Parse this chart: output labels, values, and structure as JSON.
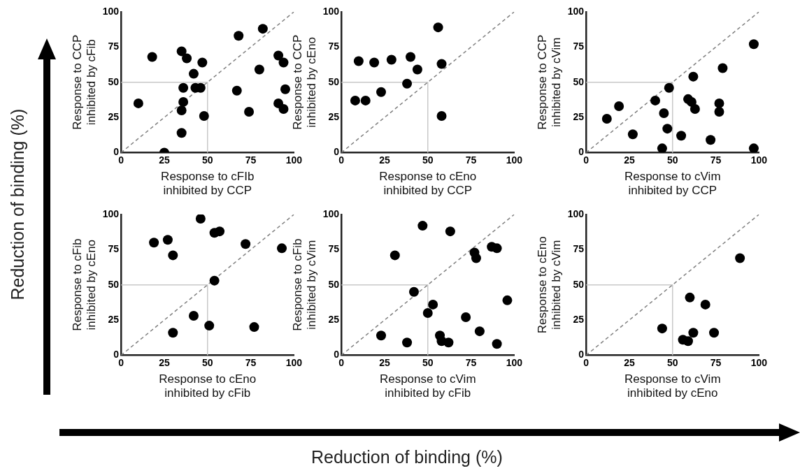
{
  "chart_data": [
    {
      "type": "scatter",
      "xlabel": "Response to cFIb inhibited by CCP",
      "ylabel": "Response to CCP inhibited by cFib",
      "xlim": [
        0,
        100
      ],
      "ylim": [
        0,
        100
      ],
      "xticks": [
        0,
        25,
        50,
        75,
        100
      ],
      "yticks": [
        0,
        25,
        50,
        75,
        100
      ],
      "series": [
        {
          "type": "scatter",
          "marker": "circle",
          "color": "#000000",
          "x": [
            18,
            35,
            38,
            47,
            42,
            36,
            43,
            46,
            10,
            36,
            35,
            48,
            35,
            25,
            68,
            82,
            67,
            74,
            80,
            91,
            94,
            95,
            91,
            94
          ],
          "values": [
            68,
            72,
            67,
            64,
            56,
            46,
            46,
            46,
            35,
            36,
            30,
            26,
            14,
            0,
            83,
            88,
            44,
            29,
            59,
            69,
            64,
            45,
            35,
            31
          ]
        },
        {
          "type": "line",
          "marker": "none",
          "line_style": "dashed",
          "color": "#808080",
          "x": [
            0,
            100
          ],
          "values": [
            0,
            100
          ]
        },
        {
          "type": "line",
          "marker": "none",
          "line_style": "solid",
          "color": "#c8c8c8",
          "x": [
            0,
            50,
            50
          ],
          "values": [
            50,
            50,
            0
          ]
        }
      ]
    },
    {
      "type": "scatter",
      "xlabel": "Response to cEno inhibited by CCP",
      "ylabel": "Response to CCP inhibited by cEno",
      "xlim": [
        0,
        100
      ],
      "ylim": [
        0,
        100
      ],
      "xticks": [
        0,
        25,
        50,
        75,
        100
      ],
      "yticks": [
        0,
        25,
        50,
        75,
        100
      ],
      "series": [
        {
          "type": "scatter",
          "marker": "circle",
          "color": "#000000",
          "x": [
            8,
            14,
            10,
            19,
            23,
            29,
            38,
            40,
            44,
            56,
            58,
            58
          ],
          "values": [
            37,
            37,
            65,
            64,
            43,
            66,
            49,
            68,
            59,
            89,
            63,
            26
          ]
        },
        {
          "type": "line",
          "marker": "none",
          "line_style": "dashed",
          "color": "#808080",
          "x": [
            0,
            100
          ],
          "values": [
            0,
            100
          ]
        },
        {
          "type": "line",
          "marker": "none",
          "line_style": "solid",
          "color": "#c8c8c8",
          "x": [
            0,
            50,
            50
          ],
          "values": [
            50,
            50,
            0
          ]
        }
      ]
    },
    {
      "type": "scatter",
      "xlabel": "Response to cVim inhibited by CCP",
      "ylabel": "Response to CCP inhibited by cVim",
      "xlim": [
        0,
        100
      ],
      "ylim": [
        0,
        100
      ],
      "xticks": [
        0,
        25,
        50,
        75,
        100
      ],
      "yticks": [
        0,
        25,
        50,
        75,
        100
      ],
      "series": [
        {
          "type": "scatter",
          "marker": "circle",
          "color": "#000000",
          "x": [
            12,
            19,
            27,
            40,
            45,
            47,
            44,
            48,
            55,
            59,
            61,
            63,
            62,
            72,
            77,
            77,
            79,
            97,
            97
          ],
          "values": [
            24,
            33,
            13,
            37,
            28,
            17,
            3,
            46,
            12,
            38,
            36,
            31,
            54,
            9,
            35,
            29,
            60,
            77,
            3
          ]
        },
        {
          "type": "line",
          "marker": "none",
          "line_style": "dashed",
          "color": "#808080",
          "x": [
            0,
            100
          ],
          "values": [
            0,
            100
          ]
        },
        {
          "type": "line",
          "marker": "none",
          "line_style": "solid",
          "color": "#c8c8c8",
          "x": [
            0,
            50,
            50
          ],
          "values": [
            50,
            50,
            0
          ]
        }
      ]
    },
    {
      "type": "scatter",
      "xlabel": "Response to cEno inhibited by cFib",
      "ylabel": "Response to cFib inhibited by cEno",
      "xlim": [
        0,
        100
      ],
      "ylim": [
        0,
        100
      ],
      "xticks": [
        0,
        25,
        50,
        75,
        100
      ],
      "yticks": [
        0,
        25,
        50,
        75,
        100
      ],
      "series": [
        {
          "type": "scatter",
          "marker": "circle",
          "color": "#000000",
          "x": [
            19,
            27,
            30,
            46,
            54,
            57,
            54,
            42,
            51,
            30,
            72,
            93,
            77
          ],
          "values": [
            80,
            82,
            71,
            97,
            87,
            88,
            53,
            28,
            21,
            16,
            79,
            76,
            20
          ]
        },
        {
          "type": "line",
          "marker": "none",
          "line_style": "dashed",
          "color": "#808080",
          "x": [
            0,
            100
          ],
          "values": [
            0,
            100
          ]
        },
        {
          "type": "line",
          "marker": "none",
          "line_style": "solid",
          "color": "#c8c8c8",
          "x": [
            0,
            50,
            50
          ],
          "values": [
            50,
            50,
            0
          ]
        }
      ]
    },
    {
      "type": "scatter",
      "xlabel": "Response to cVim inhibited by cFib",
      "ylabel": "Response to cFib inhibited by cVim",
      "xlim": [
        0,
        100
      ],
      "ylim": [
        0,
        100
      ],
      "xticks": [
        0,
        25,
        50,
        75,
        100
      ],
      "yticks": [
        0,
        25,
        50,
        75,
        100
      ],
      "series": [
        {
          "type": "scatter",
          "marker": "circle",
          "color": "#000000",
          "x": [
            23,
            31,
            38,
            42,
            47,
            50,
            53,
            57,
            58,
            62,
            63,
            72,
            77,
            78,
            80,
            87,
            90,
            90,
            96
          ],
          "values": [
            14,
            71,
            9,
            45,
            92,
            30,
            36,
            14,
            10,
            9,
            88,
            27,
            73,
            69,
            17,
            77,
            76,
            8,
            39
          ]
        },
        {
          "type": "line",
          "marker": "none",
          "line_style": "dashed",
          "color": "#808080",
          "x": [
            0,
            100
          ],
          "values": [
            0,
            100
          ]
        },
        {
          "type": "line",
          "marker": "none",
          "line_style": "solid",
          "color": "#c8c8c8",
          "x": [
            0,
            50,
            50
          ],
          "values": [
            50,
            50,
            0
          ]
        }
      ]
    },
    {
      "type": "scatter",
      "xlabel": "Response to cVim inhibited by cEno",
      "ylabel": "Response to cEno inhibited by cVim",
      "xlim": [
        0,
        100
      ],
      "ylim": [
        0,
        100
      ],
      "xticks": [
        0,
        25,
        50,
        75,
        100
      ],
      "yticks": [
        0,
        25,
        50,
        75,
        100
      ],
      "series": [
        {
          "type": "scatter",
          "marker": "circle",
          "color": "#000000",
          "x": [
            44,
            60,
            69,
            62,
            56,
            59,
            74,
            89
          ],
          "values": [
            19,
            41,
            36,
            16,
            11,
            10,
            16,
            69
          ]
        },
        {
          "type": "line",
          "marker": "none",
          "line_style": "dashed",
          "color": "#808080",
          "x": [
            0,
            100
          ],
          "values": [
            0,
            100
          ]
        },
        {
          "type": "line",
          "marker": "none",
          "line_style": "solid",
          "color": "#c8c8c8",
          "x": [
            0,
            50,
            50
          ],
          "values": [
            50,
            50,
            0
          ]
        }
      ]
    },
    {
      "type": "other",
      "xlabel": "Reduction of binding (%)",
      "ylabel": "Reduction of binding (%)"
    }
  ]
}
